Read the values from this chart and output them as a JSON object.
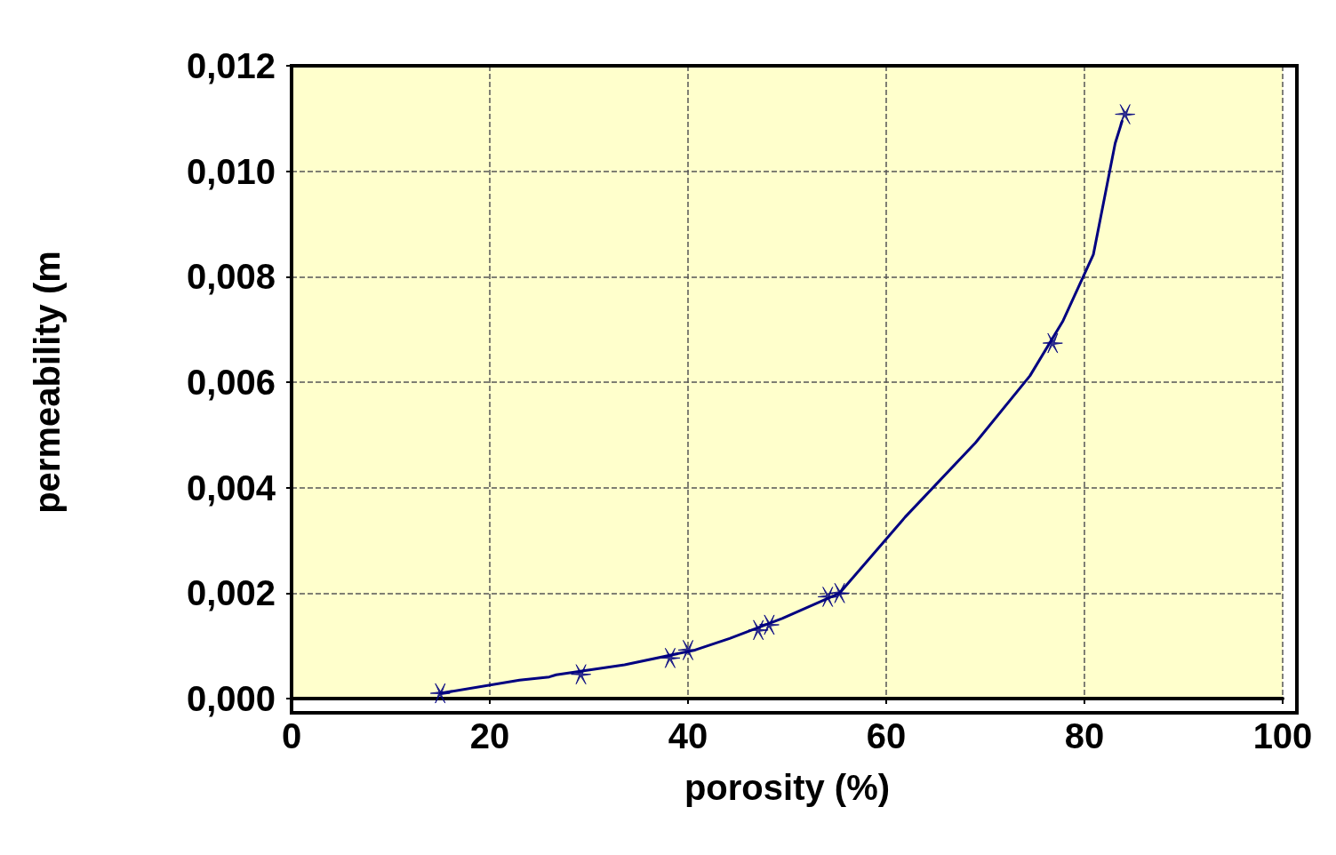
{
  "chart_data": {
    "type": "scatter",
    "xlabel": "porosity (%)",
    "ylabel": "permeability (m",
    "series": [
      {
        "color": "#000080",
        "marker": "cross",
        "x": [
          15.0,
          29.2,
          38.2,
          40.0,
          47.1,
          48.2,
          54.1,
          55.3,
          76.8,
          84.1
        ],
        "values": [
          0.0001,
          0.00046,
          0.00077,
          0.00092,
          0.0013,
          0.0014,
          0.00193,
          0.002,
          0.00674,
          0.01108
        ]
      },
      {
        "type": "line",
        "color": "#000080",
        "marker": "none",
        "line_style": "solid",
        "x": [
          15,
          23,
          26,
          26.7,
          33.6,
          40.7,
          44.2,
          49.5,
          55.3,
          61.9,
          69,
          74.5,
          77.8,
          80.9,
          83.1,
          83.8
        ],
        "values": [
          0.0001,
          0.00035,
          0.00041,
          0.00045,
          0.00064,
          0.00092,
          0.00114,
          0.00152,
          0.002,
          0.00344,
          0.00485,
          0.00612,
          0.00715,
          0.00842,
          0.01053,
          0.01095
        ]
      }
    ],
    "xlim": [
      0,
      100
    ],
    "xticks": [
      0,
      20,
      40,
      60,
      80,
      100
    ],
    "ylim": [
      0,
      0.012
    ],
    "yticks": [
      {
        "value": 0,
        "label": "0,000"
      },
      {
        "value": 0.002,
        "label": "0,002"
      },
      {
        "value": 0.004,
        "label": "0,004"
      },
      {
        "value": 0.006,
        "label": "0,006"
      },
      {
        "value": 0.008,
        "label": "0,008"
      },
      {
        "value": 0.01,
        "label": "0,010"
      },
      {
        "value": 0.012,
        "label": "0,012"
      }
    ],
    "grid": true
  }
}
